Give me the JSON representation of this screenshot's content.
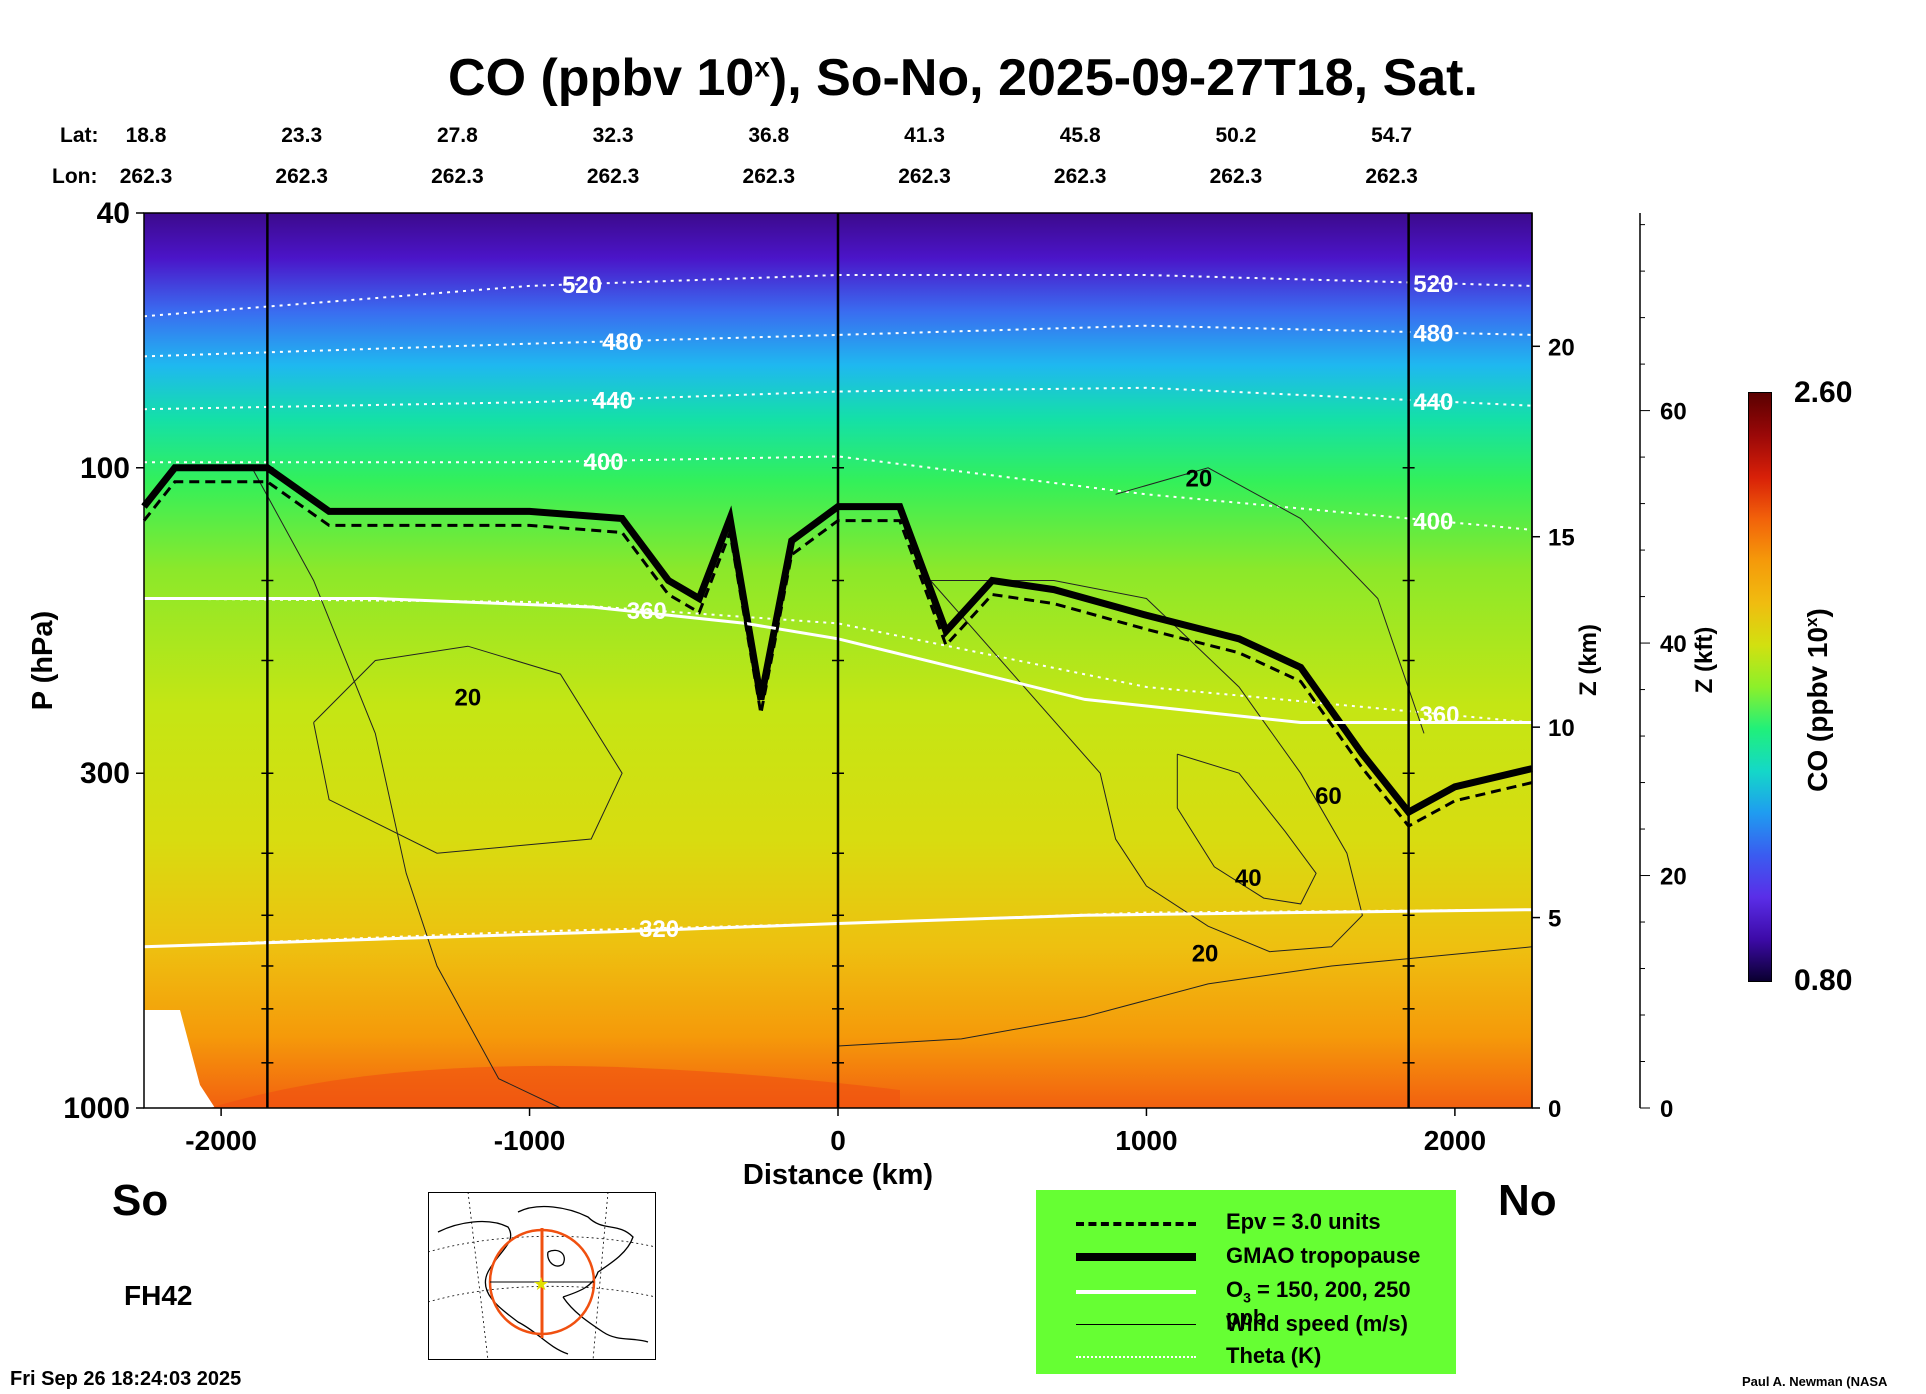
{
  "title": {
    "prefix": "CO (ppbv 10",
    "sup": "x",
    "suffix": "), So-No, 2025-09-27T18, Sat."
  },
  "coord_rows": {
    "lat_label": "Lat:",
    "lon_label": "Lon:",
    "lat": [
      "18.8",
      "23.3",
      "27.8",
      "32.3",
      "36.8",
      "41.3",
      "45.8",
      "50.2",
      "54.7"
    ],
    "lon": [
      "262.3",
      "262.3",
      "262.3",
      "262.3",
      "262.3",
      "262.3",
      "262.3",
      "262.3",
      "262.3"
    ]
  },
  "side_labels": {
    "left": "So",
    "right": "No"
  },
  "forecast_hour": "FH42",
  "timestamp": "Fri Sep 26 18:24:03 2025",
  "credit": "Paul A. Newman (NASA",
  "legend": {
    "items": [
      {
        "label": "Epv = 3.0 units",
        "style": "dashed-black"
      },
      {
        "label": "GMAO tropopause",
        "style": "thick-black"
      },
      {
        "label_prefix": "O",
        "label_sub": "3",
        "label_suffix": " = 150, 200, 250 ppb",
        "style": "white"
      },
      {
        "label": "Wind speed (m/s)",
        "style": "thin-black"
      },
      {
        "label": "Theta (K)",
        "style": "dotted-white"
      }
    ],
    "background": "#66ff33"
  },
  "colorbar": {
    "label_prefix": "CO (ppbv 10",
    "label_sup": "x",
    "label_suffix": ")",
    "max": "2.60",
    "min": "0.80",
    "colors": [
      "#0a0030",
      "#3d0aa8",
      "#5a2ee8",
      "#3a5cf0",
      "#1f9cf0",
      "#14d8c8",
      "#20f07a",
      "#8cf02a",
      "#d2e010",
      "#f0bc10",
      "#f59a0a",
      "#f2620a",
      "#d82008",
      "#9a0808",
      "#5a0000"
    ]
  },
  "chart_data": {
    "type": "heatmap",
    "title": "CO (ppbv 10x), So-No, 2025-09-27T18, Sat.",
    "xlabel": "Distance (km)",
    "ylabel": "P (hPa)",
    "y2label": "Z (km)",
    "y3label": "Z (kft)",
    "colorbar_label": "CO (ppbv 10x)",
    "xlim": [
      -2250,
      2250
    ],
    "ylim": [
      1000,
      40
    ],
    "y_scale": "log",
    "x_ticks": [
      -2000,
      -1000,
      0,
      1000,
      2000
    ],
    "x_tick_labels": [
      "-2000",
      "-1000",
      "0",
      "1000",
      "2000"
    ],
    "y_ticks": [
      1000,
      300,
      100,
      40
    ],
    "y_tick_labels": [
      "1000",
      "300",
      "100",
      "40"
    ],
    "z_km_ticks": [
      0,
      5,
      10,
      15,
      20
    ],
    "z_kft_ticks": [
      0,
      20,
      40,
      60
    ],
    "colorbar_range": [
      0.8,
      2.6
    ],
    "vertical_markers_km": [
      -1850,
      0,
      1850
    ],
    "theta_contours_K": [
      320,
      360,
      400,
      440,
      480,
      520
    ],
    "wind_speed_contours_ms": [
      20,
      40,
      60
    ],
    "series": [
      {
        "name": "GMAO tropopause",
        "x": [
          -2250,
          -2150,
          -2000,
          -1850,
          -1650,
          -1000,
          -700,
          -550,
          -450,
          -350,
          -250,
          -150,
          0,
          200,
          350,
          500,
          700,
          1000,
          1300,
          1500,
          1700,
          1850,
          2000,
          2250
        ],
        "p": [
          115,
          100,
          100,
          100,
          117,
          117,
          120,
          150,
          160,
          120,
          230,
          130,
          115,
          115,
          180,
          150,
          155,
          170,
          185,
          205,
          280,
          345,
          315,
          295
        ]
      },
      {
        "name": "Theta 360 K",
        "x": [
          -2250,
          -1500,
          -800,
          -300,
          0,
          800,
          1500,
          2250
        ],
        "p": [
          160,
          160,
          165,
          175,
          185,
          230,
          250,
          250
        ]
      },
      {
        "name": "Theta 320 K",
        "x": [
          -2250,
          -1500,
          -700,
          0,
          800,
          1500,
          2250
        ],
        "p": [
          560,
          545,
          530,
          515,
          500,
          495,
          490
        ]
      }
    ]
  }
}
